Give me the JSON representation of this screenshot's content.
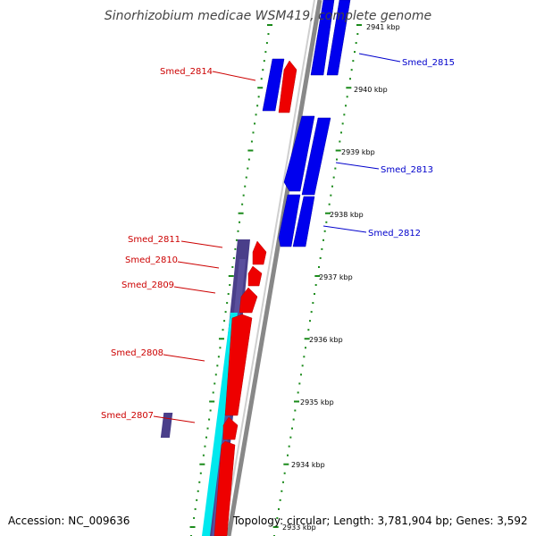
{
  "title": "Sinorhizobium medicae WSM419, complete genome",
  "accession": "Accession: NC_009636",
  "topology": "Topology: circular; Length: 3,781,904 bp; Genes: 3,592",
  "colors": {
    "forward_cds": "#0000ee",
    "reverse_cds": "#ee0000",
    "forward_label": "#0000cc",
    "reverse_label": "#cc0000",
    "cyan_track": "#00e8ee",
    "purple_track": "#4a3f8a",
    "backbone": "#888888",
    "ticks": "#1a8a1a"
  },
  "kbp_marks": [
    "2941 kbp",
    "2940 kbp",
    "2939 kbp",
    "2938 kbp",
    "2937 kbp",
    "2936 kbp",
    "2935 kbp",
    "2934 kbp",
    "2933 kbp"
  ],
  "genes": [
    {
      "name": "Smed_2815",
      "strand": "forward"
    },
    {
      "name": "Smed_2814",
      "strand": "reverse"
    },
    {
      "name": "Smed_2813",
      "strand": "forward"
    },
    {
      "name": "Smed_2812",
      "strand": "forward"
    },
    {
      "name": "Smed_2811",
      "strand": "reverse"
    },
    {
      "name": "Smed_2810",
      "strand": "reverse"
    },
    {
      "name": "Smed_2809",
      "strand": "reverse"
    },
    {
      "name": "Smed_2808",
      "strand": "reverse"
    },
    {
      "name": "Smed_2807",
      "strand": "reverse"
    }
  ]
}
